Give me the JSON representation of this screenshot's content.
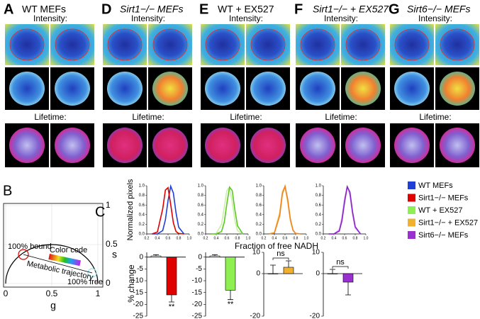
{
  "panels": [
    {
      "label": "A",
      "title": "WT MEFs",
      "intensity": "Intensity:",
      "lifetime": "Lifetime:"
    },
    {
      "label": "D",
      "title": "Sirt1−/− MEFs",
      "intensity": "Intensity:",
      "lifetime": "Lifetime:"
    },
    {
      "label": "E",
      "title": "WT + EX527",
      "intensity": "Intensity:",
      "lifetime": "Lifetime:"
    },
    {
      "label": "F",
      "title": "Sirt1−/− + EX527",
      "intensity": "Intensity:",
      "lifetime": "Lifetime:"
    },
    {
      "label": "G",
      "title": "Sirt6−/− MEFs",
      "intensity": "Intensity:",
      "lifetime": "Lifetime:"
    }
  ],
  "phasor": {
    "label": "B",
    "xlabel": "g",
    "ylabel": "s",
    "xlim": [
      0,
      1
    ],
    "ylim": [
      0,
      1
    ],
    "xticks": [
      0,
      0.5,
      1
    ],
    "yticks": [
      0,
      0.5,
      1
    ],
    "annotations": [
      "100% bound",
      "Color code",
      "Metabolic trajectory",
      "100% free"
    ]
  },
  "panel_c": {
    "label": "C",
    "ylabel": "Normalized pixels",
    "xlabel": "Fraction of free NADH",
    "bar_ylabel": "% change",
    "legend": [
      {
        "name": "WT MEFs",
        "color": "#1f3fd6"
      },
      {
        "name": "Sirt1−/− MEFs",
        "color": "#e00000"
      },
      {
        "name": "WT + EX527",
        "color": "#8ef050"
      },
      {
        "name": "Sirt1−/− + EX527",
        "color": "#f0b030"
      },
      {
        "name": "Sirt6−/− MEFs",
        "color": "#9a30d0"
      }
    ]
  },
  "chart_data": [
    {
      "type": "line",
      "x": [
        0.3,
        0.4,
        0.5,
        0.55,
        0.6,
        0.65,
        0.7,
        0.75,
        0.8,
        0.9
      ],
      "xlim": [
        0.2,
        1
      ],
      "xticks": [
        0.2,
        0.4,
        0.6,
        0.8,
        {
          "value": 1,
          "label": "1.0"
        }
      ],
      "ylim": [
        0,
        1
      ],
      "yticks": [
        {
          "value": 0,
          "label": "0.0"
        },
        0.2,
        0.4,
        0.6,
        0.8,
        {
          "value": 1,
          "label": "1.0"
        }
      ],
      "series": [
        {
          "color": "#1f3fd6",
          "values": [
            0,
            0,
            0.07,
            0.29,
            0.69,
            0.99,
            0.85,
            0.44,
            0.14,
            0
          ]
        },
        {
          "color": "#e00000",
          "values": [
            0,
            0.04,
            0.52,
            0.91,
            0.96,
            0.61,
            0.23,
            0.05,
            0.01,
            0
          ]
        }
      ]
    },
    {
      "type": "line",
      "x": [
        0.3,
        0.4,
        0.5,
        0.55,
        0.6,
        0.65,
        0.7,
        0.75,
        0.8,
        0.9
      ],
      "xlim": [
        0.2,
        1
      ],
      "xticks": [
        0.2,
        0.4,
        0.6,
        0.8,
        {
          "value": 1,
          "label": "1.0"
        }
      ],
      "ylim": [
        0,
        1
      ],
      "yticks": [
        {
          "value": 0,
          "label": "0.0"
        },
        0.2,
        0.4,
        0.6,
        0.8,
        {
          "value": 1,
          "label": "1.0"
        }
      ],
      "series": [
        {
          "color": "#c8f0a8",
          "values": [
            0,
            0.01,
            0.2,
            0.55,
            0.9,
            0.97,
            0.66,
            0.28,
            0.07,
            0
          ]
        },
        {
          "color": "#5ac820",
          "values": [
            0,
            0,
            0.05,
            0.24,
            0.63,
            0.97,
            0.9,
            0.5,
            0.17,
            0
          ]
        }
      ]
    },
    {
      "type": "line",
      "x": [
        0.3,
        0.4,
        0.5,
        0.55,
        0.6,
        0.65,
        0.7,
        0.75,
        0.8,
        0.9
      ],
      "xlim": [
        0.2,
        1
      ],
      "xticks": [
        0.2,
        0.4,
        0.6,
        0.8,
        {
          "value": 1,
          "label": "1.0"
        }
      ],
      "ylim": [
        0,
        1
      ],
      "yticks": [
        {
          "value": 0,
          "label": "0.0"
        },
        0.2,
        0.4,
        0.6,
        0.8,
        {
          "value": 1,
          "label": "1.0"
        }
      ],
      "series": [
        {
          "color": "#f5d060",
          "values": [
            0,
            0.03,
            0.45,
            0.88,
            0.98,
            0.66,
            0.27,
            0.07,
            0.01,
            0
          ]
        },
        {
          "color": "#f08020",
          "values": [
            0,
            0.02,
            0.38,
            0.83,
            0.99,
            0.72,
            0.31,
            0.08,
            0.01,
            0
          ]
        }
      ]
    },
    {
      "type": "line",
      "x": [
        0.3,
        0.4,
        0.5,
        0.55,
        0.6,
        0.65,
        0.7,
        0.75,
        0.8,
        0.9
      ],
      "xlim": [
        0.2,
        1
      ],
      "xticks": [
        0.2,
        0.4,
        0.6,
        0.8,
        {
          "value": 1,
          "label": "1.0"
        }
      ],
      "ylim": [
        0,
        1
      ],
      "yticks": [
        {
          "value": 0,
          "label": "0.0"
        },
        0.2,
        0.4,
        0.6,
        0.8,
        {
          "value": 1,
          "label": "1.0"
        }
      ],
      "series": [
        {
          "color": "#d8a8f0",
          "values": [
            0,
            0,
            0.09,
            0.34,
            0.74,
            0.99,
            0.8,
            0.4,
            0.12,
            0
          ]
        },
        {
          "color": "#8a20c8",
          "values": [
            0,
            0,
            0.06,
            0.27,
            0.66,
            0.98,
            0.87,
            0.46,
            0.15,
            0
          ]
        }
      ]
    },
    {
      "type": "bar",
      "ylim": [
        -25,
        2
      ],
      "yticks": [
        0,
        -5,
        -10,
        -15,
        -20,
        -25
      ],
      "values": [
        0.5,
        -16
      ],
      "errors": [
        0.5,
        3
      ],
      "colors": [
        "#ffffff",
        "#e00000"
      ],
      "annotation": "**"
    },
    {
      "type": "bar",
      "ylim": [
        -25,
        2
      ],
      "yticks": [
        0,
        -5,
        -10,
        -15,
        -20,
        -25
      ],
      "values": [
        0.5,
        -14
      ],
      "errors": [
        0.5,
        4
      ],
      "colors": [
        "#ffffff",
        "#8ef050"
      ],
      "annotation": "**"
    },
    {
      "type": "bar",
      "ylim": [
        -20,
        10
      ],
      "yticks": [
        10,
        0,
        -20
      ],
      "values": [
        0,
        3
      ],
      "errors": [
        4,
        3
      ],
      "colors": [
        "#ffffff",
        "#f0b030"
      ],
      "annotation": "ns"
    },
    {
      "type": "bar",
      "ylim": [
        -20,
        10
      ],
      "yticks": [
        10,
        0,
        -20
      ],
      "values": [
        0,
        -4
      ],
      "errors": [
        2,
        6
      ],
      "colors": [
        "#ffffff",
        "#9a30d0"
      ],
      "annotation": "ns"
    }
  ]
}
